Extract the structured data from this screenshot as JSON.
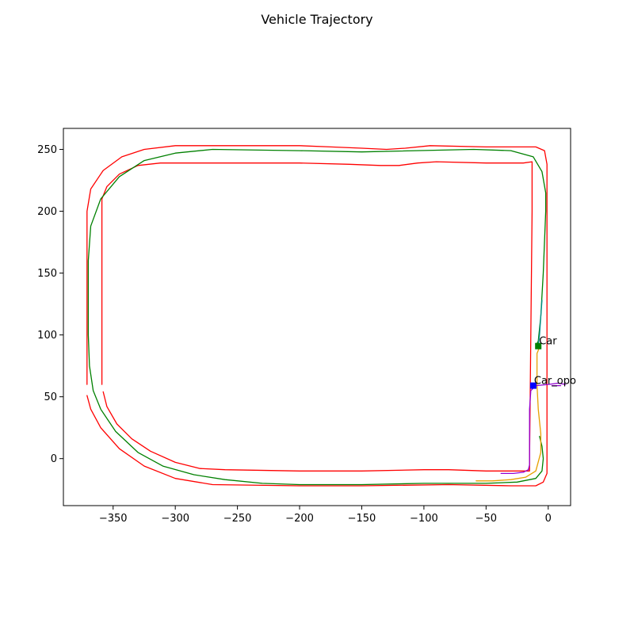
{
  "chart_data": {
    "type": "line",
    "title": "Vehicle Trajectory",
    "xlabel": "",
    "ylabel": "",
    "xlim": [
      -390,
      18
    ],
    "ylim": [
      -38,
      267
    ],
    "x_ticks": [
      -350,
      -300,
      -250,
      -200,
      -150,
      -100,
      -50,
      0
    ],
    "y_ticks": [
      0,
      50,
      100,
      150,
      200,
      250
    ],
    "x_tick_labels": [
      "−350",
      "−300",
      "−250",
      "−200",
      "−150",
      "−100",
      "−50",
      "0"
    ],
    "y_tick_labels": [
      "0",
      "50",
      "100",
      "150",
      "200",
      "250"
    ],
    "grid": false,
    "legend": "none",
    "series": [
      {
        "color": "#ff0000",
        "points": [
          [
            -371,
            60
          ],
          [
            -371,
            140
          ],
          [
            -371,
            200
          ],
          [
            -368,
            218
          ],
          [
            -358,
            233
          ],
          [
            -343,
            244
          ],
          [
            -325,
            250
          ],
          [
            -300,
            253
          ],
          [
            -200,
            253
          ],
          [
            -175,
            252
          ],
          [
            -150,
            251
          ],
          [
            -130,
            250
          ],
          [
            -115,
            251
          ],
          [
            -95,
            253
          ],
          [
            -50,
            252
          ],
          [
            -10,
            252
          ],
          [
            -3,
            249
          ],
          [
            -1,
            238
          ],
          [
            -1,
            150
          ],
          [
            -1,
            50
          ],
          [
            -1,
            -12
          ],
          [
            -4,
            -19
          ],
          [
            -10,
            -22
          ],
          [
            -30,
            -22
          ],
          [
            -80,
            -21
          ],
          [
            -150,
            -22
          ],
          [
            -200,
            -22
          ],
          [
            -270,
            -21
          ],
          [
            -300,
            -16
          ],
          [
            -325,
            -6
          ],
          [
            -345,
            8
          ],
          [
            -360,
            25
          ],
          [
            -368,
            40
          ],
          [
            -371,
            51
          ]
        ]
      },
      {
        "color": "#ff0000",
        "points": [
          [
            -359,
            60
          ],
          [
            -359,
            140
          ],
          [
            -359,
            210
          ],
          [
            -355,
            220
          ],
          [
            -345,
            230
          ],
          [
            -330,
            237
          ],
          [
            -312,
            239
          ],
          [
            -250,
            239
          ],
          [
            -200,
            239
          ],
          [
            -160,
            238
          ],
          [
            -135,
            237
          ],
          [
            -120,
            237
          ],
          [
            -105,
            239
          ],
          [
            -90,
            240
          ],
          [
            -50,
            239
          ],
          [
            -20,
            239
          ],
          [
            -13,
            240
          ],
          [
            -13,
            200
          ],
          [
            -14,
            100
          ],
          [
            -15,
            0
          ],
          [
            -15,
            -10
          ],
          [
            -30,
            -10
          ],
          [
            -50,
            -10
          ],
          [
            -80,
            -9
          ],
          [
            -100,
            -9
          ],
          [
            -150,
            -10
          ],
          [
            -200,
            -10
          ],
          [
            -260,
            -9
          ],
          [
            -280,
            -8
          ],
          [
            -300,
            -3
          ],
          [
            -320,
            6
          ],
          [
            -335,
            16
          ],
          [
            -347,
            28
          ],
          [
            -355,
            42
          ],
          [
            -358,
            54
          ]
        ]
      },
      {
        "color": "#008000",
        "points": [
          [
            -10,
            91
          ],
          [
            -8,
            95
          ],
          [
            -6,
            115
          ],
          [
            -4,
            150
          ],
          [
            -2,
            200
          ],
          [
            -2,
            215
          ],
          [
            -5,
            232
          ],
          [
            -12,
            244
          ],
          [
            -30,
            249
          ],
          [
            -60,
            250
          ],
          [
            -150,
            248
          ],
          [
            -200,
            249
          ],
          [
            -270,
            250
          ],
          [
            -300,
            247
          ],
          [
            -325,
            241
          ],
          [
            -345,
            228
          ],
          [
            -360,
            210
          ],
          [
            -368,
            188
          ],
          [
            -370,
            160
          ],
          [
            -370,
            100
          ],
          [
            -369,
            75
          ],
          [
            -366,
            55
          ],
          [
            -360,
            40
          ],
          [
            -348,
            22
          ],
          [
            -330,
            5
          ],
          [
            -310,
            -6
          ],
          [
            -285,
            -13
          ],
          [
            -260,
            -17
          ],
          [
            -230,
            -20
          ],
          [
            -200,
            -21
          ],
          [
            -150,
            -21
          ],
          [
            -100,
            -20
          ],
          [
            -50,
            -20
          ],
          [
            -25,
            -19
          ],
          [
            -10,
            -16
          ],
          [
            -5,
            -10
          ],
          [
            -4,
            0
          ],
          [
            -5,
            10
          ],
          [
            -7,
            18
          ]
        ]
      },
      {
        "color": "#e6a000",
        "points": [
          [
            -7,
            90
          ],
          [
            -9,
            85
          ],
          [
            -9,
            60
          ],
          [
            -8,
            40
          ],
          [
            -6,
            20
          ],
          [
            -6,
            5
          ],
          [
            -10,
            -10
          ],
          [
            -18,
            -15
          ],
          [
            -30,
            -17
          ],
          [
            -45,
            -18
          ],
          [
            -58,
            -18
          ]
        ]
      },
      {
        "color": "#008b8b",
        "points": [
          [
            -5,
            128
          ],
          [
            -6,
            115
          ],
          [
            -7,
            100
          ],
          [
            -8,
            92
          ]
        ]
      },
      {
        "color": "#9400d3",
        "points": [
          [
            -10,
            59
          ],
          [
            -14,
            55
          ],
          [
            -15,
            40
          ],
          [
            -15,
            10
          ],
          [
            -15,
            -5
          ],
          [
            -16,
            -9
          ],
          [
            -20,
            -11
          ],
          [
            -28,
            -12
          ],
          [
            -38,
            -12
          ]
        ]
      },
      {
        "color": "#9400d3",
        "points": [
          [
            -10,
            59
          ],
          [
            0,
            60
          ],
          [
            8,
            61
          ],
          [
            14,
            60
          ]
        ]
      },
      {
        "color": "#9400d3",
        "points": [
          [
            3,
            59
          ],
          [
            10,
            59
          ]
        ]
      }
    ],
    "markers": [
      {
        "label": "Car",
        "x": -8,
        "y": 91,
        "color": "#008000"
      },
      {
        "label": "Car_opo",
        "x": -12,
        "y": 59,
        "color": "#0000ff"
      }
    ]
  }
}
